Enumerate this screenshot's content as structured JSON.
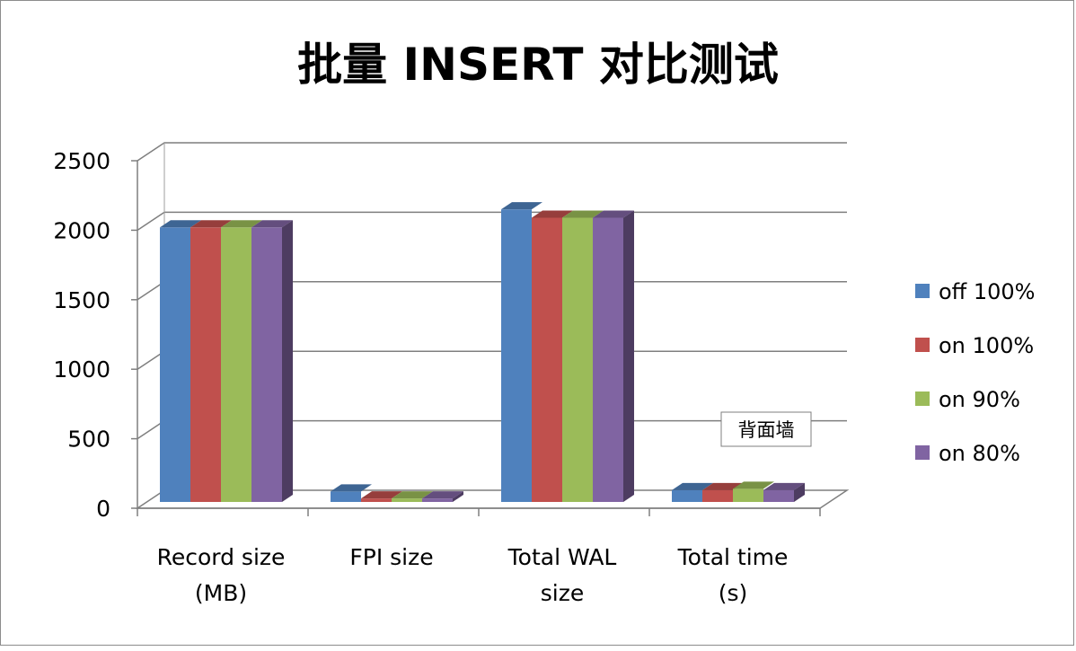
{
  "chart_data": {
    "type": "bar",
    "title": "批量 INSERT 对比测试",
    "categories": [
      [
        "Record size",
        "(MB)"
      ],
      [
        "FPI size"
      ],
      [
        "Total WAL",
        "size"
      ],
      [
        "Total time",
        "(s)"
      ]
    ],
    "series": [
      {
        "name": "off 100%",
        "color": "#4f81bd",
        "values": [
          2020,
          120,
          2150,
          130
        ]
      },
      {
        "name": "on 100%",
        "color": "#c0504d",
        "values": [
          2020,
          70,
          2090,
          130
        ]
      },
      {
        "name": "on 90%",
        "color": "#9bbb59",
        "values": [
          2020,
          70,
          2090,
          140
        ]
      },
      {
        "name": "on 80%",
        "color": "#8064a2",
        "values": [
          2020,
          70,
          2090,
          130
        ]
      }
    ],
    "yticks": [
      "0",
      "500",
      "1000",
      "1500",
      "2000",
      "2500"
    ],
    "ylim": [
      0,
      2500
    ],
    "legend_position": "right",
    "grid": true,
    "tooltip": "背面墙"
  }
}
